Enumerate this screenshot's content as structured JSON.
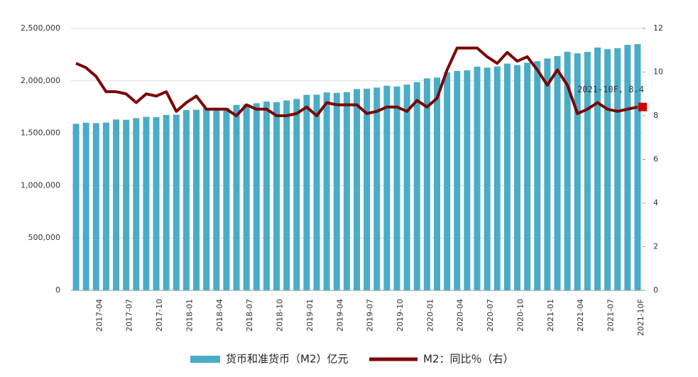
{
  "chart_data": {
    "type": "bar-line",
    "categories": [
      null,
      null,
      "2017-04",
      null,
      null,
      "2017-07",
      null,
      null,
      "2017-10",
      null,
      null,
      "2018-01",
      null,
      null,
      "2018-04",
      null,
      null,
      "2018-07",
      null,
      null,
      "2018-10",
      null,
      null,
      "2019-01",
      null,
      null,
      "2019-04",
      null,
      null,
      "2019-07",
      null,
      null,
      "2019-10",
      null,
      null,
      "2020-01",
      null,
      null,
      "2020-04",
      null,
      null,
      "2020-07",
      null,
      null,
      "2020-10",
      null,
      null,
      "2021-01",
      null,
      null,
      "2021-04",
      null,
      null,
      "2021-07",
      null,
      null,
      "2021-10F"
    ],
    "series": [
      {
        "name": "货币和准货币（M2）亿元",
        "type": "bar",
        "color": "#4bacc6",
        "values": [
          1590000,
          1600000,
          1596000,
          1601000,
          1631000,
          1628000,
          1643000,
          1656000,
          1653000,
          1674000,
          1677000,
          1721000,
          1724000,
          1740000,
          1738000,
          1742000,
          1770000,
          1776000,
          1786000,
          1802000,
          1797000,
          1812000,
          1827000,
          1866000,
          1867000,
          1889000,
          1885000,
          1892000,
          1921000,
          1925000,
          1936000,
          1953000,
          1946000,
          1964000,
          1987000,
          2023000,
          2031000,
          2081000,
          2094000,
          2100000,
          2135000,
          2126000,
          2137000,
          2164000,
          2150000,
          2172000,
          2187000,
          2213000,
          2236000,
          2277000,
          2262000,
          2276000,
          2318000,
          2302000,
          2311000,
          2343000,
          2350000
        ]
      },
      {
        "name": "M2：同比％（右）",
        "type": "line",
        "axis": "y2",
        "color": "#7b0000",
        "values": [
          10.4,
          10.2,
          9.8,
          9.1,
          9.1,
          9.0,
          8.6,
          9.0,
          8.9,
          9.1,
          8.2,
          8.6,
          8.9,
          8.3,
          8.3,
          8.3,
          8.0,
          8.5,
          8.3,
          8.3,
          8.0,
          8.0,
          8.1,
          8.4,
          8.0,
          8.6,
          8.5,
          8.5,
          8.5,
          8.1,
          8.2,
          8.4,
          8.4,
          8.2,
          8.7,
          8.4,
          8.8,
          10.1,
          11.1,
          11.1,
          11.1,
          10.7,
          10.4,
          10.9,
          10.5,
          10.7,
          10.1,
          9.4,
          10.1,
          9.4,
          8.1,
          8.3,
          8.6,
          8.3,
          8.2,
          8.3,
          8.4
        ]
      }
    ],
    "annotation": "2021-10F, 8.4",
    "marker_color": "#d00000",
    "ylim": [
      0,
      2500000
    ],
    "yticks": [
      0,
      {
        "value": 500000,
        "label": "500,000"
      },
      {
        "value": 1000000,
        "label": "1,000,000"
      },
      {
        "value": 1500000,
        "label": "1,500,000"
      },
      {
        "value": 2000000,
        "label": "2,000,000"
      },
      {
        "value": 2500000,
        "label": "2,500,000"
      }
    ],
    "y2lim": [
      0,
      12
    ],
    "y2ticks": [
      0,
      2,
      4,
      6,
      8,
      10,
      12
    ],
    "grid": true
  }
}
